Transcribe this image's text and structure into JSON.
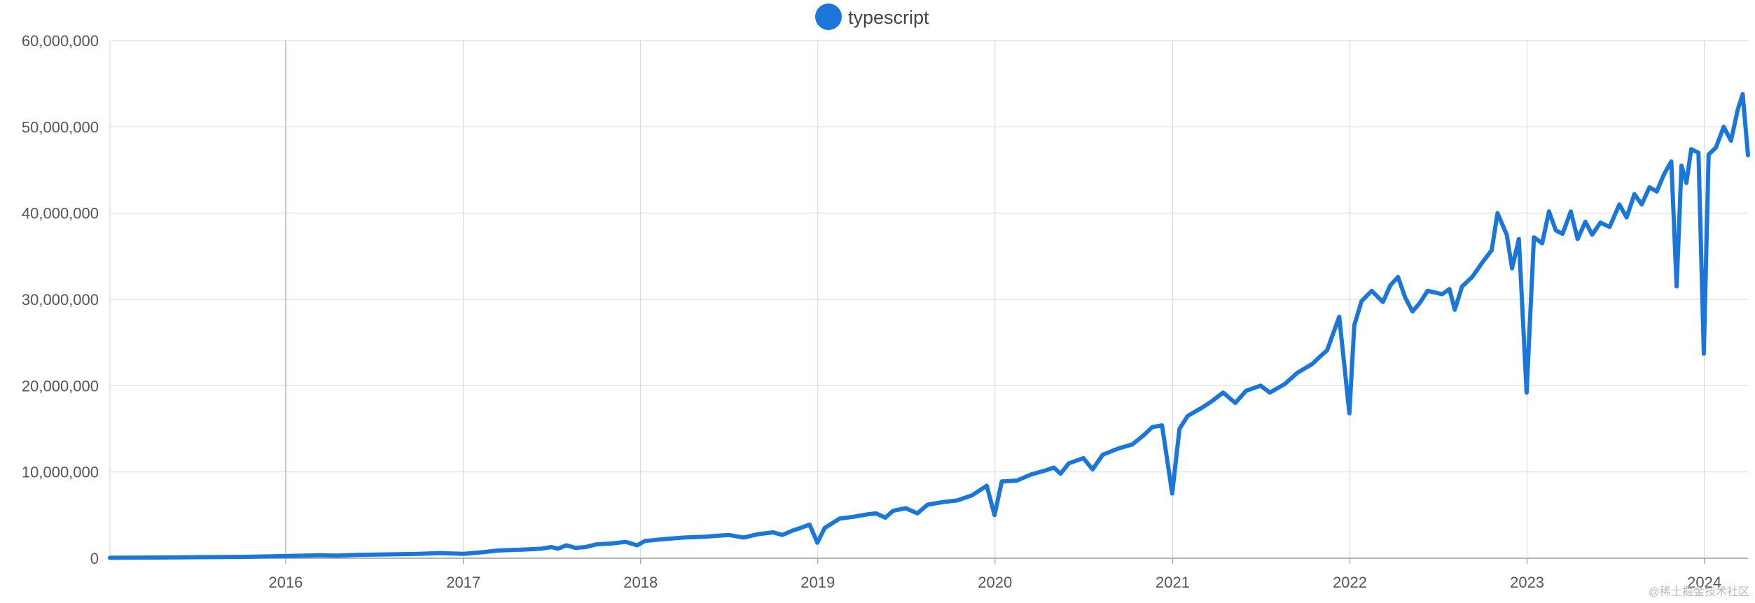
{
  "colors": {
    "series": "#1a77d9",
    "grid": "#dddddd",
    "axis": "#9e9e9e"
  },
  "watermark": "@稀土掘金技术社区",
  "chart_data": {
    "type": "line",
    "title": "",
    "xlabel": "",
    "ylabel": "",
    "legend": {
      "position": "top-center",
      "entries": [
        "typescript"
      ]
    },
    "grid": true,
    "ylim": [
      0,
      60000000
    ],
    "xlim": [
      "2015-01-04",
      "2024-03-31"
    ],
    "y_ticks": [
      0,
      10000000,
      20000000,
      30000000,
      40000000,
      50000000,
      60000000
    ],
    "y_tick_labels": [
      "0",
      "10,000,000",
      "20,000,000",
      "30,000,000",
      "40,000,000",
      "50,000,000",
      "60,000,000"
    ],
    "x_ticks": [
      "2016-01-01",
      "2017-01-01",
      "2018-01-01",
      "2019-01-01",
      "2020-01-01",
      "2021-01-01",
      "2022-01-01",
      "2023-01-01",
      "2024-01-01"
    ],
    "x_tick_labels": [
      "2016",
      "2017",
      "2018",
      "2019",
      "2020",
      "2021",
      "2022",
      "2023",
      "2024"
    ],
    "series": [
      {
        "name": "typescript",
        "points": [
          [
            "2015-01-04",
            50000
          ],
          [
            "2015-04-01",
            80000
          ],
          [
            "2015-07-01",
            120000
          ],
          [
            "2015-10-01",
            150000
          ],
          [
            "2016-01-01",
            250000
          ],
          [
            "2016-02-10",
            300000
          ],
          [
            "2016-03-10",
            350000
          ],
          [
            "2016-04-15",
            300000
          ],
          [
            "2016-06-01",
            400000
          ],
          [
            "2016-08-01",
            450000
          ],
          [
            "2016-10-01",
            500000
          ],
          [
            "2016-11-15",
            600000
          ],
          [
            "2017-01-01",
            500000
          ],
          [
            "2017-02-10",
            700000
          ],
          [
            "2017-03-15",
            900000
          ],
          [
            "2017-05-01",
            1000000
          ],
          [
            "2017-06-10",
            1100000
          ],
          [
            "2017-07-01",
            1300000
          ],
          [
            "2017-07-15",
            1100000
          ],
          [
            "2017-08-01",
            1500000
          ],
          [
            "2017-08-20",
            1200000
          ],
          [
            "2017-09-10",
            1300000
          ],
          [
            "2017-10-01",
            1600000
          ],
          [
            "2017-11-01",
            1700000
          ],
          [
            "2017-12-01",
            1900000
          ],
          [
            "2017-12-25",
            1500000
          ],
          [
            "2018-01-10",
            2000000
          ],
          [
            "2018-02-15",
            2200000
          ],
          [
            "2018-04-01",
            2400000
          ],
          [
            "2018-05-15",
            2500000
          ],
          [
            "2018-07-01",
            2700000
          ],
          [
            "2018-08-01",
            2400000
          ],
          [
            "2018-09-01",
            2800000
          ],
          [
            "2018-10-01",
            3000000
          ],
          [
            "2018-10-20",
            2700000
          ],
          [
            "2018-11-10",
            3200000
          ],
          [
            "2018-12-01",
            3600000
          ],
          [
            "2018-12-15",
            3900000
          ],
          [
            "2018-12-31",
            1800000
          ],
          [
            "2019-01-15",
            3500000
          ],
          [
            "2019-02-15",
            4600000
          ],
          [
            "2019-03-15",
            4800000
          ],
          [
            "2019-04-15",
            5100000
          ],
          [
            "2019-05-01",
            5200000
          ],
          [
            "2019-05-20",
            4700000
          ],
          [
            "2019-06-05",
            5500000
          ],
          [
            "2019-07-01",
            5800000
          ],
          [
            "2019-07-25",
            5200000
          ],
          [
            "2019-08-15",
            6200000
          ],
          [
            "2019-09-15",
            6500000
          ],
          [
            "2019-10-15",
            6700000
          ],
          [
            "2019-11-15",
            7300000
          ],
          [
            "2019-12-15",
            8400000
          ],
          [
            "2019-12-31",
            5000000
          ],
          [
            "2020-01-15",
            8900000
          ],
          [
            "2020-02-15",
            9000000
          ],
          [
            "2020-03-15",
            9700000
          ],
          [
            "2020-04-15",
            10200000
          ],
          [
            "2020-05-01",
            10500000
          ],
          [
            "2020-05-15",
            9800000
          ],
          [
            "2020-06-01",
            11000000
          ],
          [
            "2020-07-01",
            11600000
          ],
          [
            "2020-07-20",
            10300000
          ],
          [
            "2020-08-10",
            12000000
          ],
          [
            "2020-09-10",
            12700000
          ],
          [
            "2020-10-10",
            13200000
          ],
          [
            "2020-11-01",
            14200000
          ],
          [
            "2020-11-20",
            15200000
          ],
          [
            "2020-12-10",
            15400000
          ],
          [
            "2020-12-31",
            7500000
          ],
          [
            "2021-01-15",
            15000000
          ],
          [
            "2021-02-01",
            16500000
          ],
          [
            "2021-03-01",
            17400000
          ],
          [
            "2021-03-20",
            18100000
          ],
          [
            "2021-04-15",
            19200000
          ],
          [
            "2021-05-10",
            18000000
          ],
          [
            "2021-06-01",
            19400000
          ],
          [
            "2021-07-01",
            20000000
          ],
          [
            "2021-07-20",
            19200000
          ],
          [
            "2021-08-20",
            20200000
          ],
          [
            "2021-09-15",
            21500000
          ],
          [
            "2021-10-15",
            22500000
          ],
          [
            "2021-11-01",
            23400000
          ],
          [
            "2021-11-15",
            24100000
          ],
          [
            "2021-12-10",
            28000000
          ],
          [
            "2021-12-31",
            16800000
          ],
          [
            "2022-01-10",
            27000000
          ],
          [
            "2022-01-25",
            29800000
          ],
          [
            "2022-02-15",
            31000000
          ],
          [
            "2022-03-10",
            29700000
          ],
          [
            "2022-03-25",
            31600000
          ],
          [
            "2022-04-10",
            32600000
          ],
          [
            "2022-04-25",
            30200000
          ],
          [
            "2022-05-10",
            28600000
          ],
          [
            "2022-05-25",
            29600000
          ],
          [
            "2022-06-10",
            31000000
          ],
          [
            "2022-07-10",
            30600000
          ],
          [
            "2022-07-25",
            31200000
          ],
          [
            "2022-08-05",
            28800000
          ],
          [
            "2022-08-20",
            31500000
          ],
          [
            "2022-09-10",
            32600000
          ],
          [
            "2022-10-01",
            34300000
          ],
          [
            "2022-10-20",
            35700000
          ],
          [
            "2022-11-01",
            40000000
          ],
          [
            "2022-11-20",
            37500000
          ],
          [
            "2022-12-01",
            33600000
          ],
          [
            "2022-12-15",
            37000000
          ],
          [
            "2022-12-31",
            19200000
          ],
          [
            "2023-01-15",
            37200000
          ],
          [
            "2023-02-01",
            36500000
          ],
          [
            "2023-02-15",
            40200000
          ],
          [
            "2023-03-01",
            38000000
          ],
          [
            "2023-03-15",
            37600000
          ],
          [
            "2023-04-01",
            40200000
          ],
          [
            "2023-04-15",
            37000000
          ],
          [
            "2023-05-01",
            39000000
          ],
          [
            "2023-05-15",
            37500000
          ],
          [
            "2023-06-01",
            38900000
          ],
          [
            "2023-06-20",
            38400000
          ],
          [
            "2023-07-10",
            41000000
          ],
          [
            "2023-07-25",
            39500000
          ],
          [
            "2023-08-10",
            42200000
          ],
          [
            "2023-08-25",
            41000000
          ],
          [
            "2023-09-10",
            43000000
          ],
          [
            "2023-09-25",
            42500000
          ],
          [
            "2023-10-10",
            44500000
          ],
          [
            "2023-10-25",
            46000000
          ],
          [
            "2023-11-05",
            31500000
          ],
          [
            "2023-11-15",
            45500000
          ],
          [
            "2023-11-25",
            43500000
          ],
          [
            "2023-12-05",
            47400000
          ],
          [
            "2023-12-20",
            47000000
          ],
          [
            "2023-12-31",
            23700000
          ],
          [
            "2024-01-10",
            46800000
          ],
          [
            "2024-01-25",
            47600000
          ],
          [
            "2024-02-10",
            50000000
          ],
          [
            "2024-02-25",
            48400000
          ],
          [
            "2024-03-10",
            52000000
          ],
          [
            "2024-03-20",
            53800000
          ],
          [
            "2024-03-31",
            46700000
          ]
        ]
      }
    ]
  }
}
